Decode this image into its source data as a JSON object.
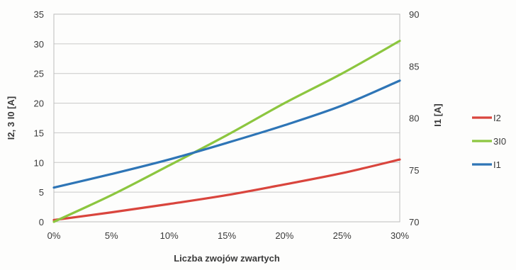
{
  "chart_data": {
    "type": "line",
    "x": [
      0,
      5,
      10,
      15,
      20,
      25,
      30
    ],
    "x_ticks": [
      "0%",
      "5%",
      "10%",
      "15%",
      "20%",
      "25%",
      "30%"
    ],
    "xlabel": "Liczba zwojów zwartych",
    "xlim": [
      0,
      30
    ],
    "y_left": {
      "label": "I2, 3 I0 [A]",
      "lim": [
        0,
        35
      ],
      "ticks": [
        "0",
        "5",
        "10",
        "15",
        "20",
        "25",
        "30",
        "35"
      ]
    },
    "y_right": {
      "label": "I1 [A]",
      "lim": [
        70,
        90
      ],
      "ticks": [
        "70",
        "75",
        "80",
        "85",
        "90"
      ]
    },
    "grid": true,
    "legend_position": "right",
    "series": [
      {
        "name": "I2",
        "color": "#d9453d",
        "axis": "left",
        "values": [
          0.3,
          1.6,
          3.0,
          4.5,
          6.3,
          8.2,
          10.5
        ]
      },
      {
        "name": "3I0",
        "color": "#8cc63f",
        "axis": "left",
        "values": [
          0.0,
          4.5,
          9.5,
          14.6,
          20.0,
          25.0,
          30.5
        ]
      },
      {
        "name": "I1",
        "color": "#2e75b6",
        "axis": "right",
        "values": [
          73.3,
          74.6,
          76.0,
          77.6,
          79.3,
          81.2,
          83.6
        ]
      }
    ]
  }
}
